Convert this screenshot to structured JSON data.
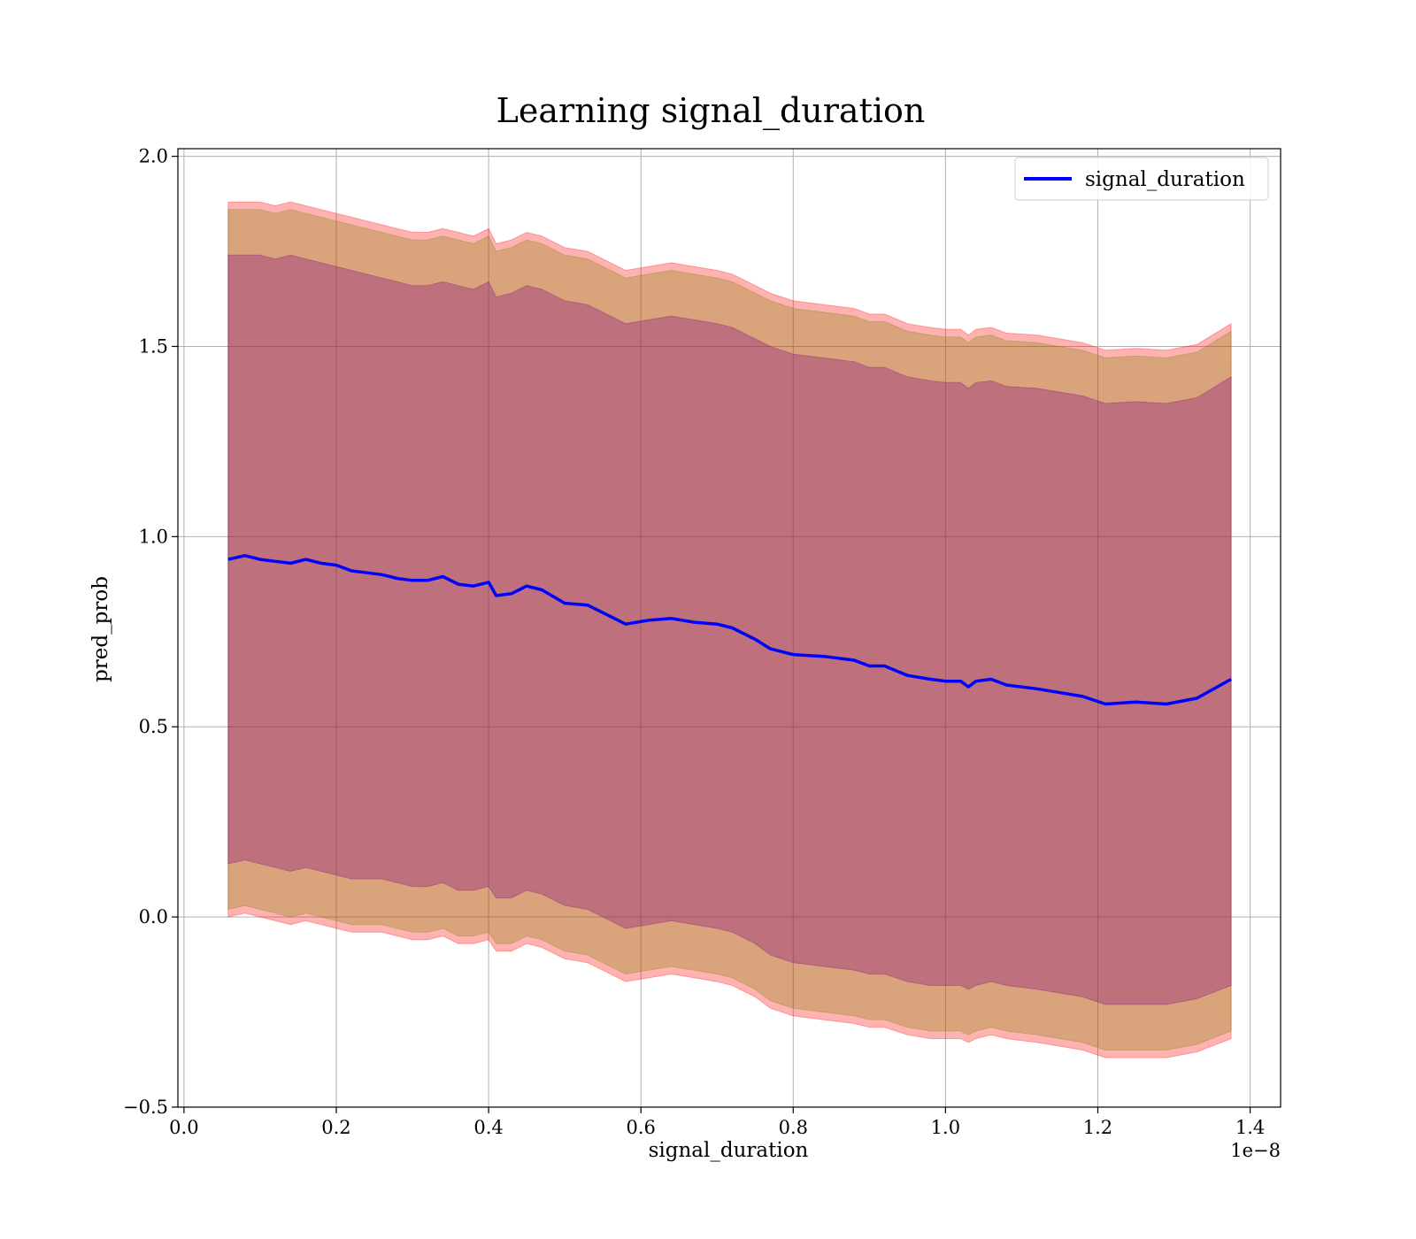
{
  "chart_data": {
    "type": "line",
    "title": "Learning signal_duration",
    "xlabel": "signal_duration",
    "ylabel": "pred_prob",
    "x_offset_label": "1e−8",
    "xlim": [
      -0.008,
      1.44
    ],
    "ylim": [
      -0.5,
      2.02
    ],
    "x_ticks": [
      0.0,
      0.2,
      0.4,
      0.6,
      0.8,
      1.0,
      1.2,
      1.4
    ],
    "x_tick_labels": [
      "0.0",
      "0.2",
      "0.4",
      "0.6",
      "0.8",
      "1.0",
      "1.2",
      "1.4"
    ],
    "y_ticks": [
      -0.5,
      0.0,
      0.5,
      1.0,
      1.5,
      2.0
    ],
    "y_tick_labels": [
      "−0.5",
      "0.0",
      "0.5",
      "1.0",
      "1.5",
      "2.0"
    ],
    "grid": true,
    "legend_position": "top-right",
    "x": [
      0.058,
      0.08,
      0.1,
      0.12,
      0.14,
      0.16,
      0.18,
      0.2,
      0.22,
      0.24,
      0.26,
      0.28,
      0.3,
      0.32,
      0.34,
      0.36,
      0.38,
      0.4,
      0.41,
      0.43,
      0.45,
      0.47,
      0.5,
      0.53,
      0.56,
      0.58,
      0.61,
      0.64,
      0.67,
      0.7,
      0.72,
      0.75,
      0.77,
      0.8,
      0.84,
      0.88,
      0.9,
      0.92,
      0.95,
      0.98,
      1.0,
      1.02,
      1.03,
      1.04,
      1.06,
      1.08,
      1.12,
      1.18,
      1.21,
      1.25,
      1.29,
      1.33,
      1.375
    ],
    "series": [
      {
        "name": "signal_duration",
        "color": "#0000ff",
        "values": [
          0.94,
          0.95,
          0.94,
          0.935,
          0.93,
          0.94,
          0.93,
          0.925,
          0.91,
          0.905,
          0.9,
          0.89,
          0.885,
          0.885,
          0.895,
          0.875,
          0.87,
          0.88,
          0.845,
          0.85,
          0.87,
          0.86,
          0.825,
          0.82,
          0.79,
          0.77,
          0.78,
          0.785,
          0.775,
          0.77,
          0.76,
          0.73,
          0.705,
          0.69,
          0.685,
          0.675,
          0.66,
          0.66,
          0.635,
          0.625,
          0.62,
          0.62,
          0.605,
          0.62,
          0.625,
          0.61,
          0.6,
          0.58,
          0.56,
          0.565,
          0.56,
          0.575,
          0.625
        ]
      }
    ],
    "bands": [
      {
        "color": "#ff0000",
        "opacity": 0.3,
        "upper": [
          1.88,
          1.88,
          1.88,
          1.87,
          1.88,
          1.87,
          1.86,
          1.85,
          1.84,
          1.83,
          1.82,
          1.81,
          1.8,
          1.8,
          1.81,
          1.8,
          1.79,
          1.81,
          1.77,
          1.78,
          1.8,
          1.79,
          1.76,
          1.75,
          1.72,
          1.7,
          1.71,
          1.72,
          1.71,
          1.7,
          1.69,
          1.66,
          1.64,
          1.62,
          1.61,
          1.6,
          1.585,
          1.585,
          1.56,
          1.55,
          1.545,
          1.545,
          1.53,
          1.545,
          1.55,
          1.535,
          1.53,
          1.51,
          1.49,
          1.495,
          1.49,
          1.505,
          1.56
        ],
        "lower": [
          0.0,
          0.01,
          0.0,
          -0.01,
          -0.02,
          -0.01,
          -0.02,
          -0.03,
          -0.04,
          -0.04,
          -0.04,
          -0.05,
          -0.06,
          -0.06,
          -0.05,
          -0.07,
          -0.07,
          -0.06,
          -0.09,
          -0.09,
          -0.07,
          -0.08,
          -0.11,
          -0.12,
          -0.15,
          -0.17,
          -0.16,
          -0.15,
          -0.16,
          -0.17,
          -0.18,
          -0.21,
          -0.24,
          -0.26,
          -0.27,
          -0.28,
          -0.29,
          -0.29,
          -0.31,
          -0.32,
          -0.32,
          -0.32,
          -0.33,
          -0.32,
          -0.31,
          -0.32,
          -0.33,
          -0.35,
          -0.37,
          -0.37,
          -0.37,
          -0.355,
          -0.32
        ]
      },
      {
        "color": "#808000",
        "opacity": 0.3,
        "upper": [
          1.86,
          1.86,
          1.86,
          1.85,
          1.86,
          1.85,
          1.84,
          1.83,
          1.82,
          1.81,
          1.8,
          1.79,
          1.78,
          1.78,
          1.79,
          1.78,
          1.77,
          1.79,
          1.75,
          1.76,
          1.78,
          1.77,
          1.74,
          1.73,
          1.7,
          1.68,
          1.69,
          1.7,
          1.69,
          1.68,
          1.67,
          1.64,
          1.62,
          1.6,
          1.59,
          1.58,
          1.565,
          1.565,
          1.54,
          1.53,
          1.525,
          1.525,
          1.51,
          1.525,
          1.53,
          1.515,
          1.51,
          1.49,
          1.47,
          1.475,
          1.47,
          1.485,
          1.54
        ],
        "lower": [
          0.02,
          0.03,
          0.02,
          0.01,
          0.0,
          0.01,
          0.0,
          -0.01,
          -0.02,
          -0.02,
          -0.02,
          -0.03,
          -0.04,
          -0.04,
          -0.03,
          -0.05,
          -0.05,
          -0.04,
          -0.07,
          -0.07,
          -0.05,
          -0.06,
          -0.09,
          -0.1,
          -0.13,
          -0.15,
          -0.14,
          -0.13,
          -0.14,
          -0.15,
          -0.16,
          -0.19,
          -0.22,
          -0.24,
          -0.25,
          -0.26,
          -0.27,
          -0.27,
          -0.29,
          -0.3,
          -0.3,
          -0.3,
          -0.31,
          -0.3,
          -0.29,
          -0.3,
          -0.31,
          -0.33,
          -0.35,
          -0.35,
          -0.35,
          -0.335,
          -0.3
        ]
      },
      {
        "color": "#800080",
        "opacity": 0.3,
        "upper": [
          1.74,
          1.74,
          1.74,
          1.73,
          1.74,
          1.73,
          1.72,
          1.71,
          1.7,
          1.69,
          1.68,
          1.67,
          1.66,
          1.66,
          1.67,
          1.66,
          1.65,
          1.67,
          1.63,
          1.64,
          1.66,
          1.65,
          1.62,
          1.61,
          1.58,
          1.56,
          1.57,
          1.58,
          1.57,
          1.56,
          1.55,
          1.52,
          1.5,
          1.48,
          1.47,
          1.46,
          1.445,
          1.445,
          1.42,
          1.41,
          1.405,
          1.405,
          1.39,
          1.405,
          1.41,
          1.395,
          1.39,
          1.37,
          1.35,
          1.355,
          1.35,
          1.365,
          1.42
        ],
        "lower": [
          0.14,
          0.15,
          0.14,
          0.13,
          0.12,
          0.13,
          0.12,
          0.11,
          0.1,
          0.1,
          0.1,
          0.09,
          0.08,
          0.08,
          0.09,
          0.07,
          0.07,
          0.08,
          0.05,
          0.05,
          0.07,
          0.06,
          0.03,
          0.02,
          -0.01,
          -0.03,
          -0.02,
          -0.01,
          -0.02,
          -0.03,
          -0.04,
          -0.07,
          -0.1,
          -0.12,
          -0.13,
          -0.14,
          -0.15,
          -0.15,
          -0.17,
          -0.18,
          -0.18,
          -0.18,
          -0.19,
          -0.18,
          -0.17,
          -0.18,
          -0.19,
          -0.21,
          -0.23,
          -0.23,
          -0.23,
          -0.215,
          -0.18
        ]
      }
    ]
  }
}
